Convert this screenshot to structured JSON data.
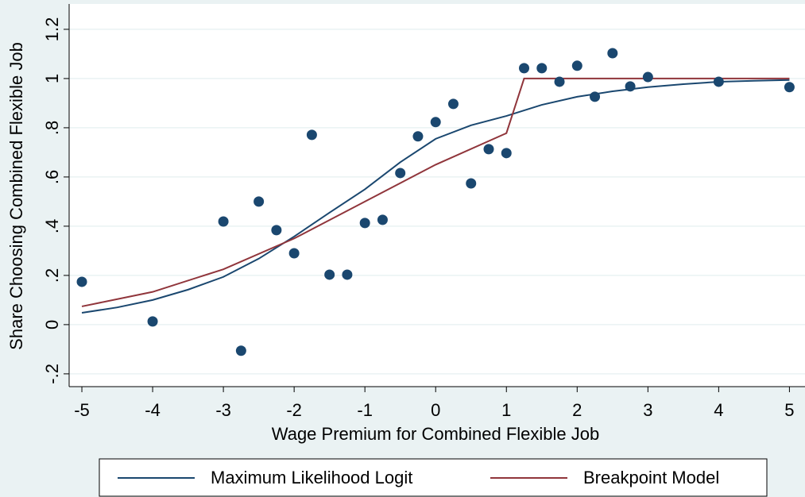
{
  "chart_data": {
    "type": "scatter",
    "x_label": "Wage Premium for Combined Flexible Job",
    "y_label": "Share Choosing Combined Flexible Job",
    "xlim": [
      -5.18,
      5.22
    ],
    "ylim": [
      -0.252,
      1.303
    ],
    "xticks": [
      -5,
      -4,
      -3,
      -2,
      -1,
      0,
      1,
      2,
      3,
      4,
      5
    ],
    "yticks": [
      {
        "value": -0.2,
        "label": "-.2"
      },
      0,
      {
        "value": 0.2,
        "label": ".2"
      },
      {
        "value": 0.4,
        "label": ".4"
      },
      {
        "value": 0.6,
        "label": ".6"
      },
      {
        "value": 0.8,
        "label": ".8"
      },
      1,
      1.2
    ],
    "grid": true,
    "series": [
      {
        "style": "marker",
        "color": "#1a476f",
        "x": [
          -5,
          -4,
          -3,
          -2.75,
          -2.5,
          -2.25,
          -2,
          -1.75,
          -1.5,
          -1.25,
          -1,
          -0.75,
          -0.5,
          -0.25,
          0,
          0.25,
          0.5,
          0.75,
          1,
          1.25,
          1.5,
          1.75,
          2,
          2.25,
          2.5,
          2.75,
          3,
          4,
          5
        ],
        "values": [
          0.174,
          0.013,
          0.419,
          -0.106,
          0.5,
          0.384,
          0.29,
          0.771,
          0.203,
          0.203,
          0.413,
          0.426,
          0.616,
          0.765,
          0.823,
          0.897,
          0.574,
          0.713,
          0.697,
          1.042,
          1.042,
          0.987,
          1.052,
          0.926,
          1.103,
          0.968,
          1.006,
          0.987,
          0.965
        ]
      },
      {
        "style": "line",
        "name": "Maximum Likelihood Logit",
        "color": "#1a476f",
        "x": [
          -5,
          -4.5,
          -4,
          -3.5,
          -3,
          -2.5,
          -2,
          -1.5,
          -1,
          -0.5,
          0,
          0.5,
          1,
          1.5,
          2,
          2.5,
          3,
          3.5,
          4,
          4.5,
          5
        ],
        "values": [
          0.048,
          0.07,
          0.1,
          0.142,
          0.194,
          0.268,
          0.358,
          0.455,
          0.55,
          0.66,
          0.755,
          0.81,
          0.848,
          0.893,
          0.926,
          0.948,
          0.965,
          0.977,
          0.987,
          0.991,
          0.994
        ]
      },
      {
        "style": "line",
        "name": "Breakpoint Model",
        "color": "#90353b",
        "x": [
          -5,
          -4,
          -3,
          -2,
          -1,
          0,
          1,
          1.25,
          5
        ],
        "values": [
          0.074,
          0.133,
          0.225,
          0.35,
          0.5,
          0.65,
          0.778,
          1.0,
          1.0
        ]
      }
    ],
    "legend": "bottom"
  }
}
